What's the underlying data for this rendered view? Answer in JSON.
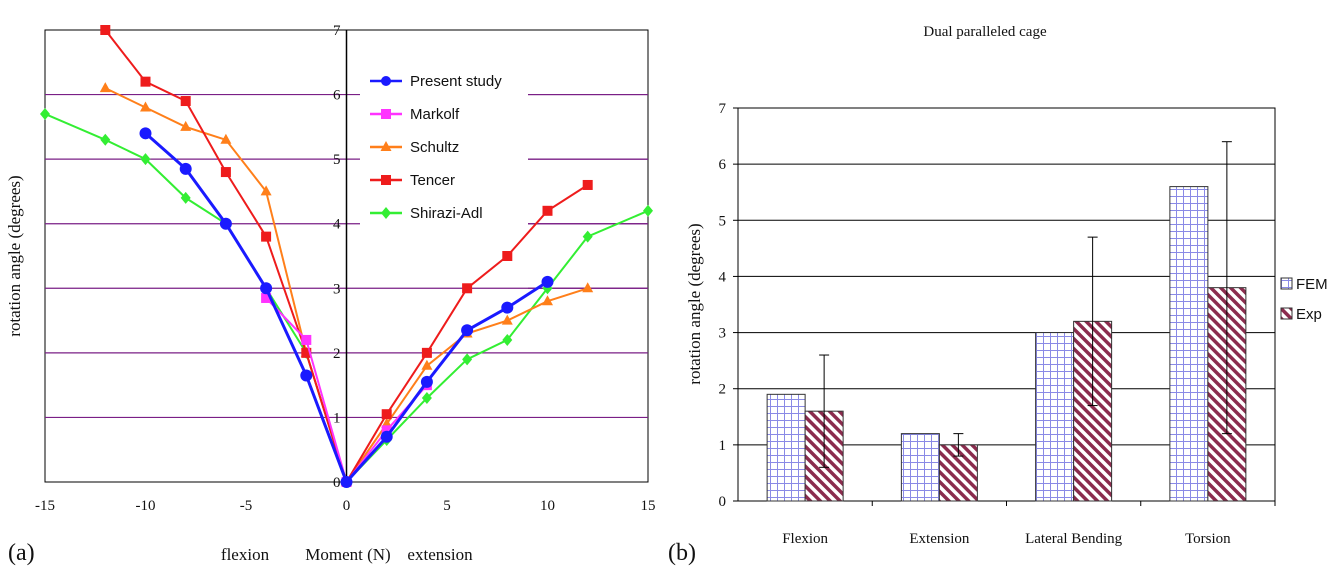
{
  "chart_data": [
    {
      "type": "line",
      "panel_label": "(a)",
      "xlabel_left": "flexion",
      "xlabel": "Moment (N)",
      "xlabel_right": "extension",
      "ylabel": "rotation angle (degrees)",
      "xlim": [
        -15,
        15
      ],
      "ylim": [
        0,
        7
      ],
      "x_ticks": [
        -15,
        -10,
        -5,
        0,
        5,
        10,
        15
      ],
      "y_ticks": [
        0,
        1,
        2,
        3,
        4,
        5,
        6,
        7
      ],
      "legend_position": "top-right",
      "series": [
        {
          "name": "Present study",
          "color": "#1a1aff",
          "marker": "circle",
          "points": [
            [
              -10,
              5.4
            ],
            [
              -8,
              4.85
            ],
            [
              -6,
              4.0
            ],
            [
              -4,
              3.0
            ],
            [
              -2,
              1.65
            ],
            [
              0,
              0
            ],
            [
              2,
              0.7
            ],
            [
              4,
              1.55
            ],
            [
              6,
              2.35
            ],
            [
              8,
              2.7
            ],
            [
              10,
              3.1
            ]
          ]
        },
        {
          "name": "Markolf",
          "color": "#ff33ff",
          "marker": "square",
          "points": [
            [
              -4,
              2.85
            ],
            [
              -2,
              2.2
            ],
            [
              0,
              0
            ],
            [
              2,
              0.8
            ],
            [
              4,
              1.5
            ]
          ]
        },
        {
          "name": "Schultz",
          "color": "#ff7f1a",
          "marker": "triangle",
          "points": [
            [
              -12,
              6.1
            ],
            [
              -10,
              5.8
            ],
            [
              -8,
              5.5
            ],
            [
              -6,
              5.3
            ],
            [
              -4,
              4.5
            ],
            [
              -2,
              2.0
            ],
            [
              0,
              0
            ],
            [
              2,
              0.9
            ],
            [
              4,
              1.8
            ],
            [
              6,
              2.3
            ],
            [
              8,
              2.5
            ],
            [
              10,
              2.8
            ],
            [
              12,
              3.0
            ]
          ]
        },
        {
          "name": "Tencer",
          "color": "#ee1c1c",
          "marker": "square",
          "points": [
            [
              -12,
              7.0
            ],
            [
              -10,
              6.2
            ],
            [
              -8,
              5.9
            ],
            [
              -6,
              4.8
            ],
            [
              -4,
              3.8
            ],
            [
              -2,
              2.0
            ],
            [
              0,
              0
            ],
            [
              2,
              1.05
            ],
            [
              4,
              2.0
            ],
            [
              6,
              3.0
            ],
            [
              8,
              3.5
            ],
            [
              10,
              4.2
            ],
            [
              12,
              4.6
            ]
          ]
        },
        {
          "name": "Shirazi-Adl",
          "color": "#33ee33",
          "marker": "diamond",
          "points": [
            [
              -15,
              5.7
            ],
            [
              -12,
              5.3
            ],
            [
              -10,
              5.0
            ],
            [
              -8,
              4.4
            ],
            [
              -6,
              4.0
            ],
            [
              -4,
              3.0
            ],
            [
              -2,
              2.0
            ],
            [
              0,
              0
            ],
            [
              2,
              0.65
            ],
            [
              4,
              1.3
            ],
            [
              6,
              1.9
            ],
            [
              8,
              2.2
            ],
            [
              10,
              3.0
            ],
            [
              12,
              3.8
            ],
            [
              15,
              4.2
            ]
          ]
        }
      ]
    },
    {
      "type": "bar",
      "panel_label": "(b)",
      "title": "Dual paralleled cage",
      "ylabel": "rotation angle (degrees)",
      "ylim": [
        0,
        7
      ],
      "y_ticks": [
        0,
        1,
        2,
        3,
        4,
        5,
        6,
        7
      ],
      "categories": [
        "Flexion",
        "Extension",
        "Lateral Bending",
        "Torsion"
      ],
      "legend_position": "right",
      "series": [
        {
          "name": "FEM",
          "pattern": "grid",
          "values": [
            1.9,
            1.2,
            3.0,
            5.6
          ]
        },
        {
          "name": "Exp",
          "pattern": "hatch",
          "values": [
            1.6,
            1.0,
            3.2,
            3.8
          ],
          "error_low": [
            0.6,
            0.8,
            1.7,
            1.2
          ],
          "error_high": [
            2.6,
            1.2,
            4.7,
            6.4
          ]
        }
      ]
    }
  ]
}
